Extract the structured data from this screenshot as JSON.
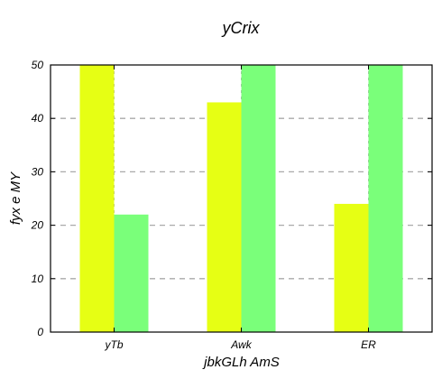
{
  "chart_data": {
    "type": "bar",
    "title": "yCrix",
    "xlabel": "jbkGLh AmS",
    "ylabel": "fyx e MY",
    "categories": [
      "yTb",
      "Awk",
      "ER"
    ],
    "series": [
      {
        "values": [
          50,
          43,
          24
        ],
        "color": "#e6ff14"
      },
      {
        "values": [
          22,
          50,
          50
        ],
        "color": "#7aff7a"
      }
    ],
    "ylim": [
      0,
      50
    ],
    "yticks": [
      0,
      10,
      20,
      30,
      40,
      50
    ],
    "grid": true
  }
}
